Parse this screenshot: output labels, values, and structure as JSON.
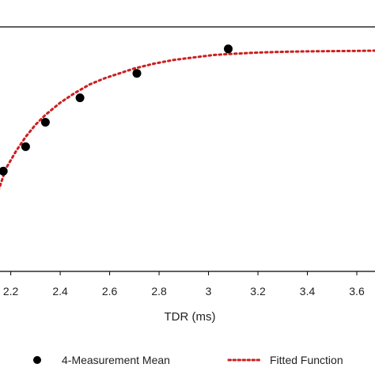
{
  "chart_data": {
    "type": "scatter",
    "title": "",
    "xlabel": "TDR (ms)",
    "ylabel": "",
    "xlim": [
      2.15,
      3.68
    ],
    "ylim": [
      0,
      1
    ],
    "xticks": [
      "2.2",
      "2.4",
      "2.6",
      "2.8",
      "3",
      "3.2",
      "3.4",
      "3.6"
    ],
    "grid": false,
    "legend_position": "bottom",
    "series": [
      {
        "name": "4-Measurement Mean",
        "kind": "points",
        "color": "#000000",
        "x": [
          2.17,
          2.26,
          2.34,
          2.48,
          2.71,
          3.08
        ],
        "y": [
          0.41,
          0.51,
          0.61,
          0.71,
          0.81,
          0.91
        ]
      },
      {
        "name": "Fitted Function",
        "kind": "dotted-line",
        "color": "#cc1f1f",
        "x": [
          2.15,
          2.18,
          2.22,
          2.26,
          2.3,
          2.34,
          2.4,
          2.46,
          2.52,
          2.58,
          2.64,
          2.7,
          2.78,
          2.86,
          2.94,
          3.02,
          3.1,
          3.2,
          3.3,
          3.4,
          3.5,
          3.6,
          3.68
        ],
        "y": [
          0.33,
          0.42,
          0.49,
          0.55,
          0.6,
          0.64,
          0.69,
          0.73,
          0.765,
          0.79,
          0.81,
          0.83,
          0.85,
          0.865,
          0.875,
          0.885,
          0.89,
          0.895,
          0.898,
          0.9,
          0.901,
          0.902,
          0.903
        ]
      }
    ]
  }
}
